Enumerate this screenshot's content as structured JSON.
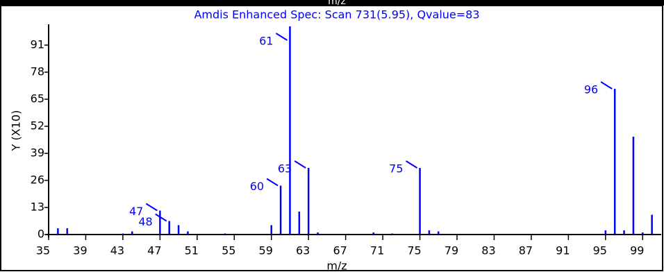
{
  "chart_data": {
    "type": "bar",
    "title": "Amdis Enhanced Spec: Scan 731(5.95), Qvalue=83",
    "top_label": "m/z",
    "x_label": "m/z",
    "y_label": "Y (X10)",
    "color": "#0000ff",
    "x": [
      36,
      37,
      43,
      44,
      47,
      48,
      49,
      50,
      54,
      59,
      60,
      61,
      62,
      63,
      64,
      70,
      72,
      75,
      76,
      77,
      95,
      96,
      97,
      98,
      99,
      100
    ],
    "values": [
      3,
      3,
      0.5,
      1.5,
      11.5,
      6.5,
      4.5,
      1.5,
      0.5,
      4.5,
      23.5,
      100,
      11,
      32,
      1,
      1,
      0.5,
      32,
      2,
      1.5,
      2,
      70,
      2,
      47,
      1,
      9.5
    ],
    "annotations": [
      47,
      48,
      60,
      61,
      63,
      75,
      96
    ],
    "xlim": [
      35,
      101
    ],
    "xticks": [
      35,
      39,
      43,
      47,
      51,
      55,
      59,
      63,
      67,
      71,
      75,
      79,
      83,
      87,
      91,
      95,
      99
    ],
    "ylim": [
      0,
      101
    ],
    "yticks": [
      0,
      13,
      26,
      39,
      52,
      65,
      78,
      91
    ]
  }
}
